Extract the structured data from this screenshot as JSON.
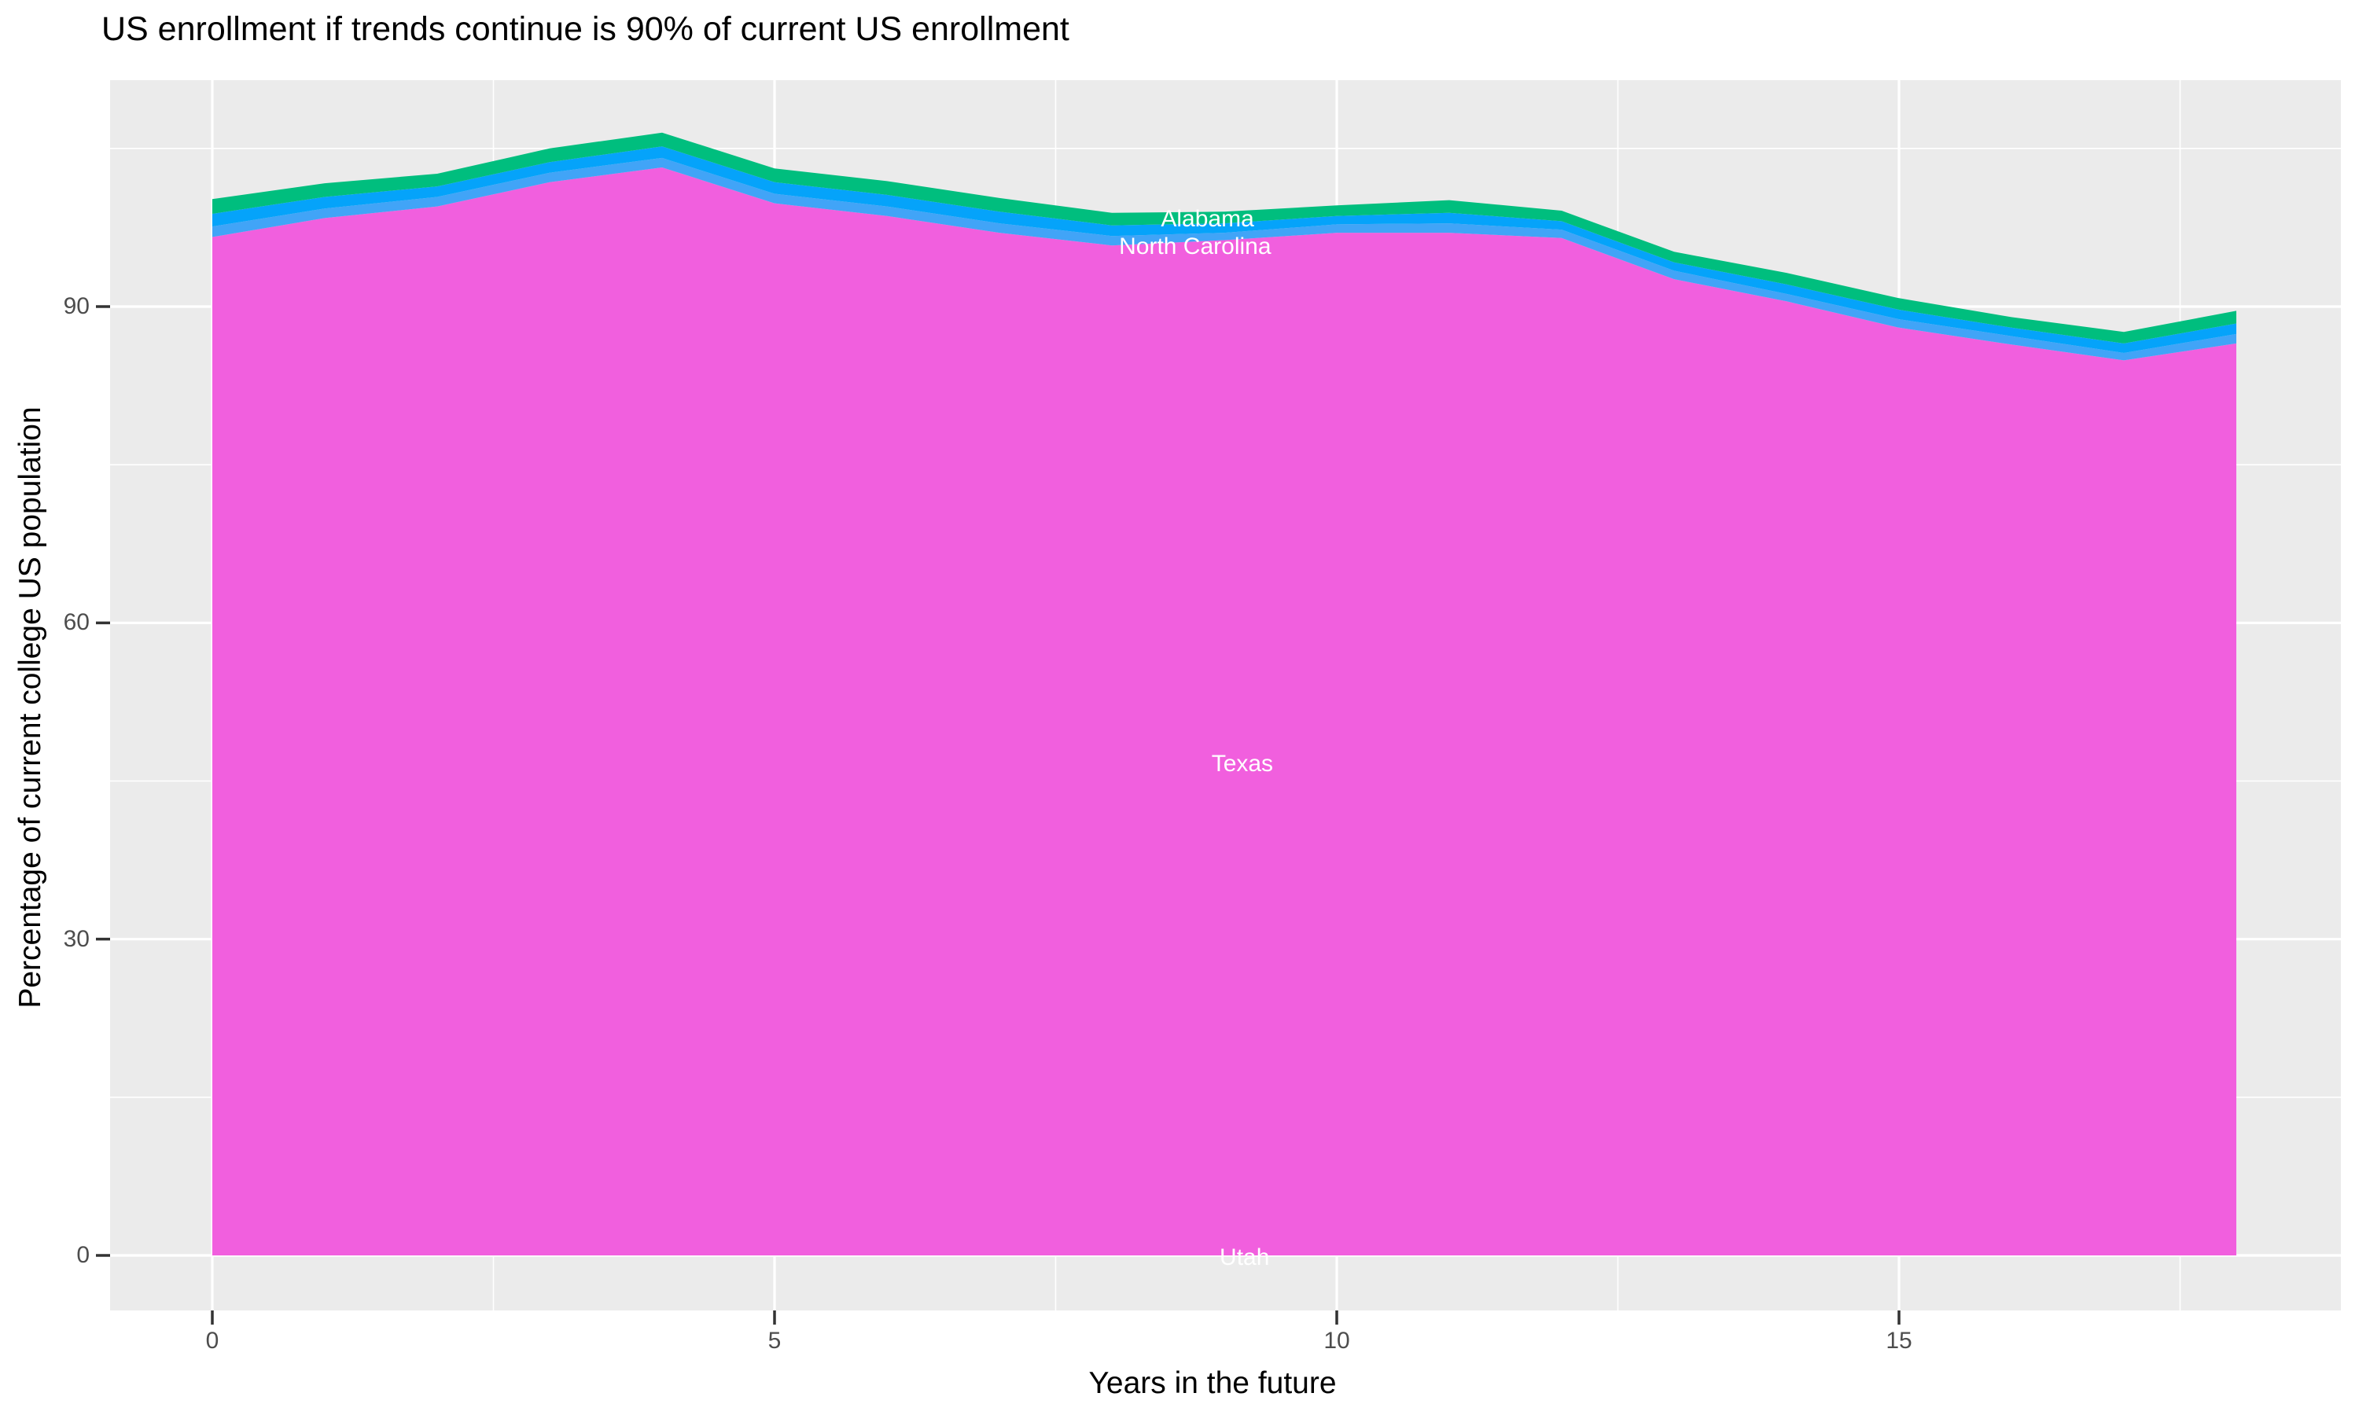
{
  "chart_data": {
    "type": "area",
    "stacked": true,
    "title": "US enrollment if trends continue is 90% of current US enrollment",
    "xlabel": "Years in the future",
    "ylabel": "Percentage of current college US population",
    "x": [
      0,
      1,
      2,
      3,
      4,
      5,
      6,
      7,
      8,
      9,
      10,
      11,
      12,
      13,
      14,
      15,
      16,
      17,
      18
    ],
    "x_ticks": [
      0,
      5,
      10,
      15
    ],
    "x_minor_ticks": [
      2.5,
      7.5,
      12.5,
      17.5
    ],
    "y_ticks": [
      0,
      30,
      60,
      90
    ],
    "y_minor_ticks": [
      15,
      45,
      75,
      105
    ],
    "legend": "none",
    "grid": "on",
    "series": [
      {
        "name": "Utah",
        "color": "#F15FDE",
        "values": [
          0.3,
          0.3,
          0.3,
          0.3,
          0.3,
          0.3,
          0.3,
          0.3,
          0.3,
          0.3,
          0.3,
          0.3,
          0.3,
          0.3,
          0.3,
          0.3,
          0.3,
          0.3,
          0.3
        ]
      },
      {
        "name": "Texas",
        "color": "#F15FDE",
        "values": [
          96.3,
          98.1,
          99.2,
          101.5,
          102.9,
          99.5,
          98.3,
          96.7,
          95.5,
          96.0,
          96.7,
          96.7,
          96.2,
          92.3,
          90.2,
          87.7,
          86.1,
          84.6,
          86.2
        ]
      },
      {
        "name": "",
        "color": "#41A4F7",
        "values": [
          1.0,
          0.9,
          0.9,
          0.9,
          0.9,
          0.9,
          0.9,
          0.9,
          0.9,
          0.7,
          0.8,
          0.9,
          0.8,
          0.8,
          0.7,
          0.8,
          0.8,
          0.7,
          0.9
        ]
      },
      {
        "name": "North Carolina",
        "color": "#05A3FA",
        "values": [
          1.2,
          1.1,
          1.0,
          1.0,
          1.1,
          1.1,
          1.1,
          1.1,
          1.0,
          0.9,
          0.8,
          1.0,
          0.8,
          0.8,
          0.9,
          0.9,
          0.8,
          0.9,
          1.0
        ]
      },
      {
        "name": "Alabama",
        "color": "#00BE7E",
        "values": [
          1.4,
          1.3,
          1.2,
          1.3,
          1.3,
          1.3,
          1.3,
          1.3,
          1.2,
          1.1,
          1.0,
          1.2,
          1.0,
          1.0,
          1.1,
          1.1,
          1.0,
          1.1,
          1.2
        ]
      }
    ],
    "area_labels": [
      {
        "text": "Alabama",
        "x": 8.85,
        "y": 98.3
      },
      {
        "text": "North Carolina",
        "x": 8.74,
        "y": 95.7
      },
      {
        "text": "Texas",
        "x": 9.16,
        "y": 46.6
      },
      {
        "text": "Utah",
        "x": 9.18,
        "y": -0.2
      }
    ]
  },
  "axes": {
    "x_tick_labels": [
      "0",
      "5",
      "10",
      "15"
    ],
    "y_tick_labels": [
      "0",
      "30",
      "60",
      "90"
    ]
  },
  "style_colors": {
    "background": "#FFFFFF",
    "panel_bg": "#EBEBEB",
    "grid": "#FFFFFF",
    "tick_mark": "#333333",
    "tick_text": "#4D4D4D",
    "axis_text": "#000000",
    "area_label_text": "#FFFFFF"
  }
}
